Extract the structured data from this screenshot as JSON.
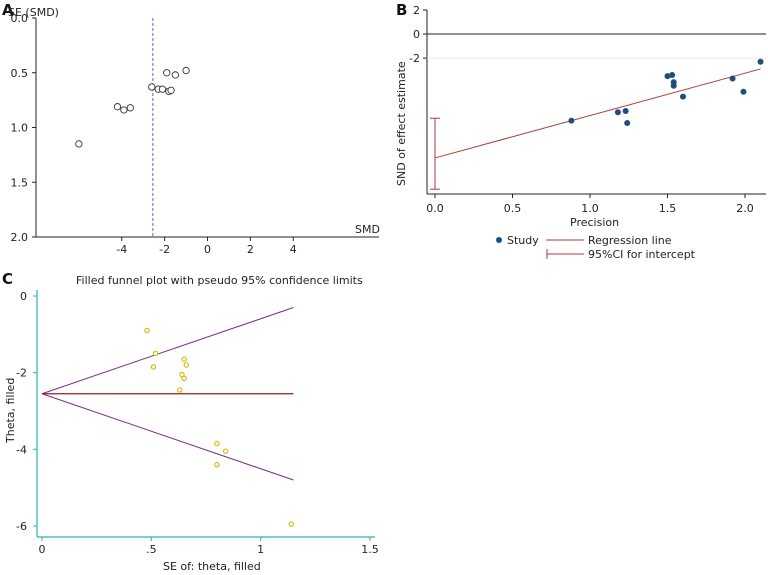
{
  "panels": {
    "A": {
      "letter": "A"
    },
    "B": {
      "letter": "B"
    },
    "C": {
      "letter": "C"
    }
  },
  "chart_data": [
    {
      "panel": "A",
      "type": "scatter",
      "title": "",
      "xlabel": "SMD",
      "ylabel": "SE (SMD)",
      "xlim": [
        -8,
        8
      ],
      "ylim": [
        0.0,
        2.0
      ],
      "y_inverted": true,
      "x_ticks": [
        -4,
        -2,
        0,
        2,
        4
      ],
      "y_ticks": [
        "0.0",
        "0.5",
        "1.0",
        "1.5",
        "2.0"
      ],
      "reference_line_x": -2.55,
      "reference_line_style": "dashed",
      "reference_line_color": "#6a5acd",
      "marker": "open-circle",
      "points": [
        {
          "x": -6.0,
          "y": 1.15
        },
        {
          "x": -4.2,
          "y": 0.81
        },
        {
          "x": -3.9,
          "y": 0.84
        },
        {
          "x": -3.6,
          "y": 0.82
        },
        {
          "x": -2.6,
          "y": 0.63
        },
        {
          "x": -2.3,
          "y": 0.65
        },
        {
          "x": -2.1,
          "y": 0.65
        },
        {
          "x": -1.9,
          "y": 0.5
        },
        {
          "x": -1.8,
          "y": 0.67
        },
        {
          "x": -1.7,
          "y": 0.66
        },
        {
          "x": -1.5,
          "y": 0.52
        },
        {
          "x": -1.0,
          "y": 0.48
        }
      ]
    },
    {
      "panel": "B",
      "type": "scatter",
      "title": "",
      "xlabel": "Precision",
      "ylabel": "SND of effect estimate",
      "xlim": [
        0,
        2.12
      ],
      "ylim": [
        -13.3,
        2
      ],
      "x_ticks": [
        "0.0",
        "0.5",
        "1.0",
        "1.5",
        "2.0"
      ],
      "y_ticks": [
        "2",
        "0",
        "-2"
      ],
      "zero_line": 0,
      "point_color": "#1f4e79",
      "line_color": "#b03a3a",
      "points": [
        {
          "x": 0.88,
          "y": -7.2
        },
        {
          "x": 1.18,
          "y": -6.5
        },
        {
          "x": 1.23,
          "y": -6.4
        },
        {
          "x": 1.24,
          "y": -7.4
        },
        {
          "x": 1.5,
          "y": -3.5
        },
        {
          "x": 1.53,
          "y": -3.4
        },
        {
          "x": 1.54,
          "y": -4.0
        },
        {
          "x": 1.54,
          "y": -4.3
        },
        {
          "x": 1.6,
          "y": -5.2
        },
        {
          "x": 1.92,
          "y": -3.7
        },
        {
          "x": 1.99,
          "y": -4.8
        },
        {
          "x": 2.1,
          "y": -2.3
        }
      ],
      "regression_line": {
        "x": [
          0,
          2.1
        ],
        "y": [
          -10.3,
          -2.9
        ]
      },
      "intercept_ci": {
        "x": 0,
        "low": -12.9,
        "high": -7.0
      },
      "legend": {
        "placement": "bottom",
        "entries": [
          "Study",
          "Regression line",
          "95%CI for intercept"
        ]
      }
    },
    {
      "panel": "C",
      "type": "scatter",
      "title": "Filled funnel plot with pseudo 95% confidence limits",
      "xlabel": "SE of: theta, filled",
      "ylabel": "Theta, filled",
      "xlim": [
        0,
        1.5
      ],
      "ylim": [
        -6.3,
        0
      ],
      "x_ticks": [
        "0",
        ".5",
        "1",
        "1.5"
      ],
      "y_ticks": [
        "0",
        "-2",
        "-4",
        "-6"
      ],
      "point_color": "#c8b400",
      "axis_color": "#2bb5b5",
      "funnel_color": "#7b2a8c",
      "pooled_line_color": "#9b1c1c",
      "pooled_estimate": -2.55,
      "funnel": {
        "apex": [
          0,
          -2.55
        ],
        "upper_end": [
          1.15,
          -0.3
        ],
        "lower_end": [
          1.15,
          -4.8
        ]
      },
      "points": [
        {
          "x": 0.48,
          "y": -0.9
        },
        {
          "x": 0.51,
          "y": -1.85
        },
        {
          "x": 0.52,
          "y": -1.5
        },
        {
          "x": 0.63,
          "y": -2.45
        },
        {
          "x": 0.64,
          "y": -2.05
        },
        {
          "x": 0.65,
          "y": -1.65
        },
        {
          "x": 0.65,
          "y": -2.15
        },
        {
          "x": 0.66,
          "y": -1.8
        },
        {
          "x": 0.8,
          "y": -3.85
        },
        {
          "x": 0.8,
          "y": -4.4
        },
        {
          "x": 0.84,
          "y": -4.05
        },
        {
          "x": 1.14,
          "y": -5.95
        }
      ]
    }
  ]
}
